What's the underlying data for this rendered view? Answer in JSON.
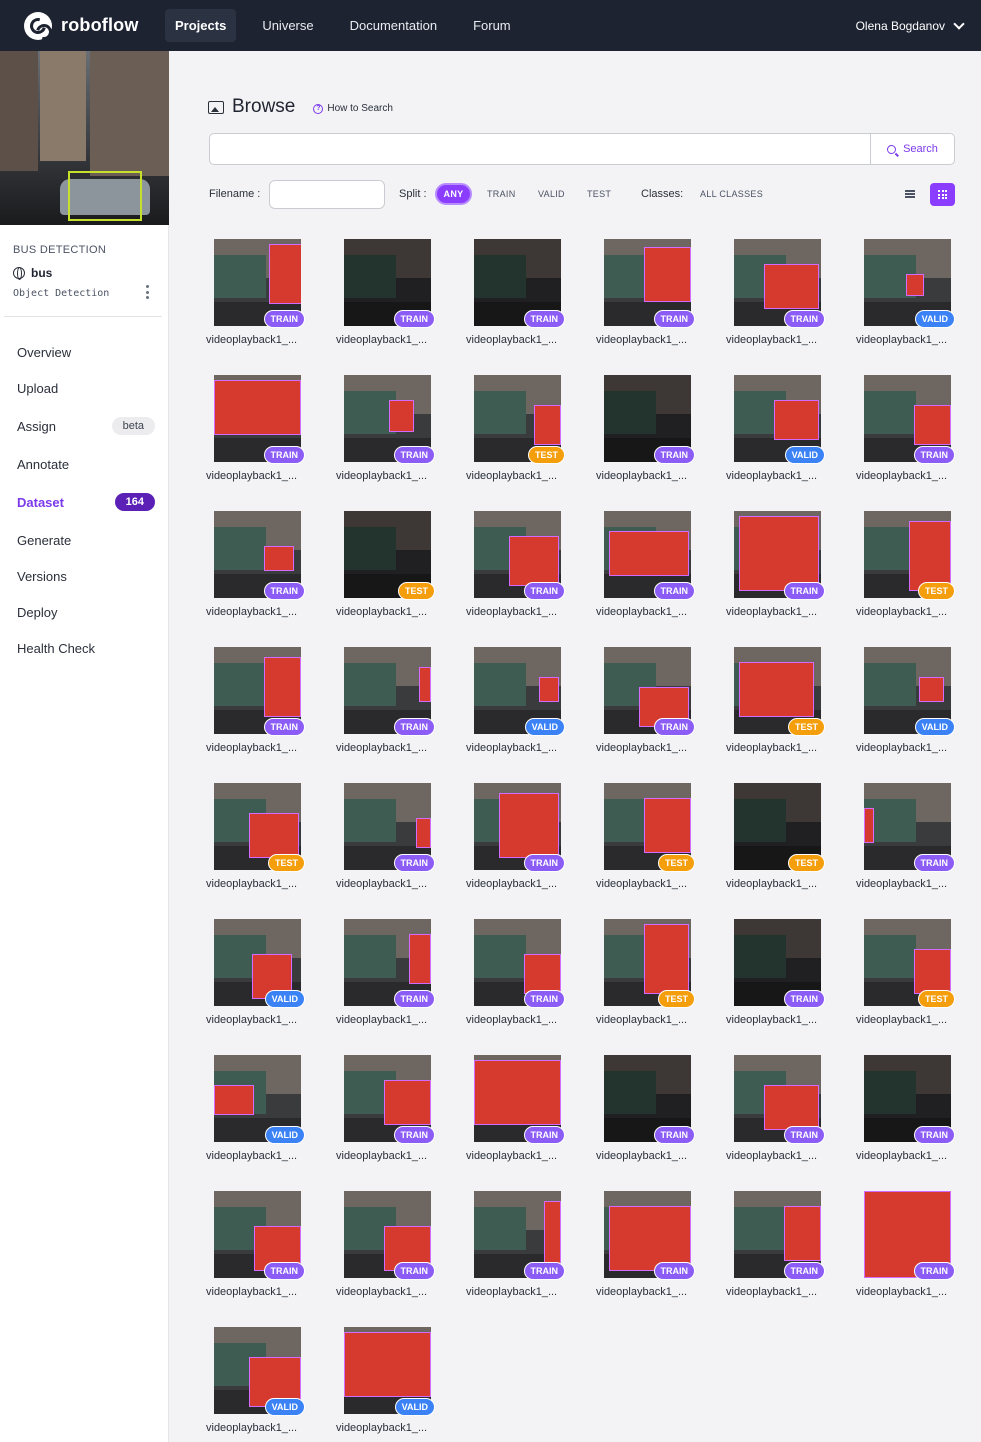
{
  "nav": {
    "brand": "roboflow",
    "links": [
      "Projects",
      "Universe",
      "Documentation",
      "Forum"
    ],
    "active_link": "Projects",
    "user": "Olena Bogdanov"
  },
  "project": {
    "type_label": "BUS DETECTION",
    "name": "bus",
    "kind": "Object Detection"
  },
  "sidebar": {
    "items": [
      {
        "label": "Overview"
      },
      {
        "label": "Upload"
      },
      {
        "label": "Assign",
        "badge": "beta"
      },
      {
        "label": "Annotate"
      },
      {
        "label": "Dataset",
        "badge": "164",
        "active": true
      },
      {
        "label": "Generate"
      },
      {
        "label": "Versions"
      },
      {
        "label": "Deploy"
      },
      {
        "label": "Health Check"
      }
    ]
  },
  "browse": {
    "title": "Browse",
    "how_to": "How to Search",
    "search_placeholder": "",
    "search_button": "Search",
    "filename_label": "Filename :",
    "split_label": "Split :",
    "splits": [
      "ANY",
      "TRAIN",
      "VALID",
      "TEST"
    ],
    "classes_label": "Classes:",
    "classes_value": "ALL CLASSES"
  },
  "accent_color": "#8b3dff",
  "images": {
    "filename": "videoplayback1_...",
    "splits": [
      "TRAIN",
      "TRAIN",
      "TRAIN",
      "TRAIN",
      "TRAIN",
      "VALID",
      "TRAIN",
      "TRAIN",
      "TEST",
      "TRAIN",
      "VALID",
      "TRAIN",
      "TRAIN",
      "TEST",
      "TRAIN",
      "TRAIN",
      "TRAIN",
      "TEST",
      "TRAIN",
      "TRAIN",
      "VALID",
      "TRAIN",
      "TEST",
      "VALID",
      "TEST",
      "TRAIN",
      "TRAIN",
      "TEST",
      "TEST",
      "TRAIN",
      "VALID",
      "TRAIN",
      "TRAIN",
      "TEST",
      "TRAIN",
      "TEST",
      "VALID",
      "TRAIN",
      "TRAIN",
      "TRAIN",
      "TRAIN",
      "TRAIN",
      "TRAIN",
      "TRAIN",
      "TRAIN",
      "TRAIN",
      "TRAIN",
      "TRAIN",
      "VALID",
      "VALID"
    ]
  }
}
